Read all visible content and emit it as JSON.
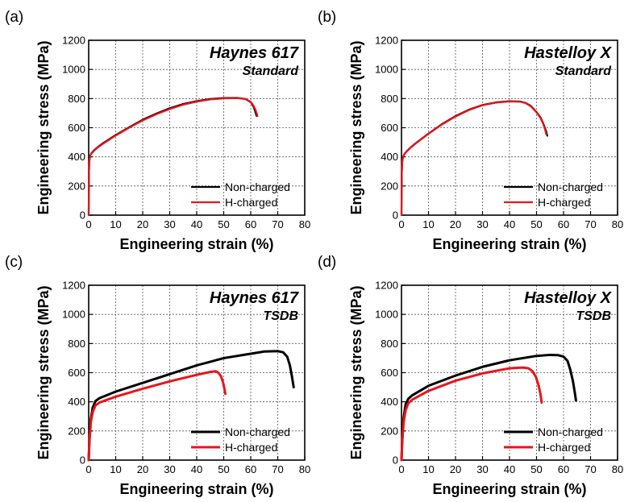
{
  "figure": {
    "legend_labels": [
      "Non-charged",
      "H-charged"
    ],
    "colors": {
      "non_charged": "#000000",
      "h_charged": "#e8151b"
    }
  },
  "chart_data": [
    {
      "type": "line",
      "panel_label": "(a)",
      "title": "Haynes 617",
      "subtitle": "Standard",
      "xlabel": "Engineering strain (%)",
      "ylabel": "Engineering stress (MPa)",
      "xlim": [
        0,
        80
      ],
      "ylim": [
        0,
        1200
      ],
      "xticks": [
        0,
        10,
        20,
        30,
        40,
        50,
        60,
        70,
        80
      ],
      "yticks": [
        0,
        200,
        400,
        600,
        800,
        1000,
        1200
      ],
      "grid": true,
      "legend_position": "bottom-right",
      "series": [
        {
          "name": "Non-charged",
          "color": "#000000",
          "x": [
            0,
            0.1,
            0.3,
            0.6,
            1,
            2,
            3,
            5,
            10,
            15,
            20,
            25,
            30,
            35,
            40,
            45,
            50,
            55,
            58,
            60,
            61,
            61.6,
            62,
            62.2
          ],
          "y": [
            0,
            300,
            380,
            410,
            425,
            445,
            462,
            490,
            550,
            604,
            655,
            697,
            734,
            763,
            783,
            797,
            804,
            805,
            797,
            775,
            745,
            715,
            690,
            680
          ]
        },
        {
          "name": "H-charged",
          "color": "#e8151b",
          "x": [
            0,
            0.1,
            0.3,
            0.6,
            1,
            2,
            3,
            5,
            10,
            15,
            20,
            25,
            30,
            35,
            40,
            45,
            50,
            55,
            58,
            60,
            61,
            61.8,
            62.3,
            62.5
          ],
          "y": [
            0,
            300,
            378,
            408,
            422,
            442,
            459,
            486,
            546,
            600,
            650,
            692,
            728,
            758,
            779,
            794,
            801,
            803,
            797,
            778,
            752,
            722,
            695,
            680
          ]
        }
      ]
    },
    {
      "type": "line",
      "panel_label": "(b)",
      "title": "Hastelloy X",
      "subtitle": "Standard",
      "xlabel": "Engineering strain (%)",
      "ylabel": "Engineering stress (MPa)",
      "xlim": [
        0,
        80
      ],
      "ylim": [
        0,
        1200
      ],
      "xticks": [
        0,
        10,
        20,
        30,
        40,
        50,
        60,
        70,
        80
      ],
      "yticks": [
        0,
        200,
        400,
        600,
        800,
        1000,
        1200
      ],
      "grid": true,
      "legend_position": "bottom-right",
      "series": [
        {
          "name": "Non-charged",
          "color": "#000000",
          "x": [
            0,
            0.1,
            0.3,
            0.6,
            1,
            2,
            3,
            5,
            10,
            15,
            20,
            25,
            30,
            35,
            40,
            44,
            46,
            48,
            50,
            51.5,
            52.5,
            53.5,
            54
          ],
          "y": [
            0,
            280,
            370,
            400,
            418,
            440,
            458,
            490,
            560,
            625,
            680,
            724,
            756,
            774,
            782,
            780,
            770,
            748,
            708,
            670,
            630,
            580,
            545
          ]
        },
        {
          "name": "H-charged",
          "color": "#e8151b",
          "x": [
            0,
            0.1,
            0.3,
            0.6,
            1,
            2,
            3,
            5,
            10,
            15,
            20,
            25,
            30,
            35,
            40,
            44,
            46,
            48,
            50,
            51.5,
            52.5,
            53.2,
            53.6
          ],
          "y": [
            0,
            280,
            368,
            398,
            416,
            438,
            456,
            488,
            558,
            622,
            677,
            721,
            754,
            772,
            780,
            778,
            768,
            745,
            705,
            665,
            625,
            585,
            555
          ]
        }
      ]
    },
    {
      "type": "line",
      "panel_label": "(c)",
      "title": "Haynes 617",
      "subtitle": "TSDB",
      "xlabel": "Engineering strain (%)",
      "ylabel": "Engineering stress (MPa)",
      "xlim": [
        0,
        80
      ],
      "ylim": [
        0,
        1200
      ],
      "xticks": [
        0,
        10,
        20,
        30,
        40,
        50,
        60,
        70,
        80
      ],
      "yticks": [
        0,
        200,
        400,
        600,
        800,
        1000,
        1200
      ],
      "grid": true,
      "legend_position": "bottom-right",
      "series": [
        {
          "name": "Non-charged",
          "color": "#000000",
          "x": [
            0,
            0.3,
            0.8,
            1.5,
            2.5,
            4,
            10,
            20,
            30,
            40,
            50,
            60,
            65,
            70,
            72,
            73.5,
            74.5,
            75.3,
            75.9
          ],
          "y": [
            0,
            150,
            280,
            360,
            405,
            425,
            470,
            530,
            590,
            650,
            700,
            730,
            745,
            748,
            740,
            710,
            650,
            570,
            500
          ]
        },
        {
          "name": "H-charged",
          "color": "#e8151b",
          "x": [
            0,
            0.3,
            0.8,
            1.5,
            2.5,
            4,
            10,
            20,
            30,
            40,
            45,
            47,
            48,
            49,
            49.8,
            50.3,
            50.6
          ],
          "y": [
            0,
            130,
            260,
            330,
            375,
            395,
            435,
            490,
            540,
            585,
            605,
            610,
            600,
            575,
            530,
            485,
            455
          ]
        }
      ]
    },
    {
      "type": "line",
      "panel_label": "(d)",
      "title": "Hastelloy X",
      "subtitle": "TSDB",
      "xlabel": "Engineering strain (%)",
      "ylabel": "Engineering stress (MPa)",
      "xlim": [
        0,
        80
      ],
      "ylim": [
        0,
        1200
      ],
      "xticks": [
        0,
        10,
        20,
        30,
        40,
        50,
        60,
        70,
        80
      ],
      "yticks": [
        0,
        200,
        400,
        600,
        800,
        1000,
        1200
      ],
      "grid": true,
      "legend_position": "bottom-right",
      "series": [
        {
          "name": "Non-charged",
          "color": "#000000",
          "x": [
            0,
            0.3,
            0.8,
            1.5,
            2.5,
            4,
            10,
            20,
            30,
            40,
            50,
            55,
            58,
            60,
            61.5,
            62.5,
            63.5,
            64.2,
            64.6
          ],
          "y": [
            0,
            150,
            290,
            380,
            420,
            445,
            510,
            580,
            640,
            685,
            715,
            722,
            720,
            710,
            680,
            620,
            540,
            460,
            410
          ]
        },
        {
          "name": "H-charged",
          "color": "#e8151b",
          "x": [
            0,
            0.3,
            0.8,
            1.5,
            2.5,
            4,
            10,
            20,
            30,
            40,
            45,
            47,
            48.5,
            49.8,
            50.8,
            51.5,
            51.9
          ],
          "y": [
            0,
            130,
            260,
            340,
            390,
            415,
            475,
            545,
            595,
            630,
            635,
            630,
            610,
            570,
            510,
            450,
            395
          ]
        }
      ]
    }
  ]
}
